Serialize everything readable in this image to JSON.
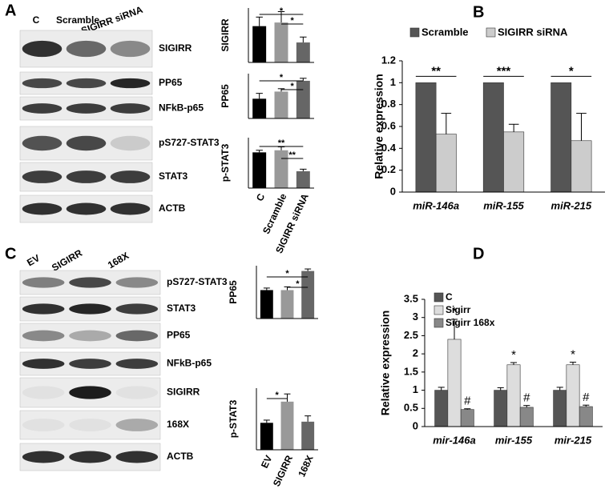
{
  "panel_labels": [
    "A",
    "B",
    "C",
    "D"
  ],
  "blots": [
    {
      "lanes": [
        "C",
        "Scramble",
        "SIGIRR siRNA"
      ],
      "rows": [
        "SIGIRR",
        "PP65",
        "NFkB-p65",
        "pS727-STAT3",
        "STAT3",
        "ACTB"
      ]
    },
    {
      "lanes": [
        "EV",
        "SIGIRR",
        "168X"
      ],
      "rows": [
        "pS727-STAT3",
        "STAT3",
        "PP65",
        "NFkB-p65",
        "SIGIRR",
        "168X",
        "ACTB"
      ]
    }
  ],
  "chart_data": [
    {
      "type": "bar",
      "y_label": "SIGIRR",
      "categories": [
        null,
        null,
        null
      ],
      "values": [
        1.0,
        1.1,
        0.55
      ],
      "errors": [
        0.25,
        0.3,
        0.15
      ],
      "colors": [
        "#000000",
        "#999999",
        "#666666"
      ],
      "ylim": [
        0,
        1.5
      ],
      "annotations": [
        "*",
        "*"
      ]
    },
    {
      "type": "bar",
      "y_label": "PP65",
      "categories": [
        null,
        null,
        null
      ],
      "values": [
        0.55,
        0.75,
        1.05
      ],
      "errors": [
        0.15,
        0.08,
        0.07
      ],
      "colors": [
        "#000000",
        "#999999",
        "#666666"
      ],
      "ylim": [
        0,
        1.25
      ],
      "annotations": [
        "*",
        "*"
      ]
    },
    {
      "type": "bar",
      "y_label": "p-STAT3",
      "categories": [
        "C",
        "Scramble",
        "SIGIRR siRNA"
      ],
      "values": [
        0.85,
        0.9,
        0.4
      ],
      "errors": [
        0.05,
        0.08,
        0.05
      ],
      "colors": [
        "#000000",
        "#999999",
        "#666666"
      ],
      "ylim": [
        0,
        1.2
      ],
      "annotations": [
        "**",
        "**"
      ]
    },
    {
      "type": "grouped_bar",
      "y_label": "Relative expression",
      "categories": [
        "miR-146a",
        "miR-155",
        "miR-215"
      ],
      "series": [
        {
          "name": "Scramble",
          "color": "#555555",
          "values": [
            1,
            1,
            1
          ],
          "errors": [
            0,
            0,
            0
          ]
        },
        {
          "name": "SIGIRR siRNA",
          "color": "#cccccc",
          "values": [
            0.53,
            0.55,
            0.47
          ],
          "errors": [
            0.19,
            0.07,
            0.25
          ]
        }
      ],
      "ylim": [
        0,
        1.2
      ],
      "yticks": [
        0,
        0.2,
        0.4,
        0.6,
        0.8,
        1,
        1.2
      ],
      "annotations": [
        "**",
        "***",
        "*"
      ]
    },
    {
      "type": "bar",
      "y_label": "PP65",
      "categories": [
        null,
        null,
        null
      ],
      "values": [
        0.7,
        0.7,
        1.17
      ],
      "errors": [
        0.05,
        0.08,
        0.05
      ],
      "colors": [
        "#000000",
        "#999999",
        "#666666"
      ],
      "ylim": [
        0,
        1.3
      ],
      "annotations": [
        "*",
        "*"
      ]
    },
    {
      "type": "bar",
      "y_label": "p-STAT3",
      "categories": [
        "EV",
        "SIGIRR",
        "168X"
      ],
      "values": [
        0.7,
        1.25,
        0.73
      ],
      "errors": [
        0.07,
        0.2,
        0.15
      ],
      "colors": [
        "#000000",
        "#999999",
        "#666666"
      ],
      "ylim": [
        0,
        1.6
      ],
      "annotations": [
        "*"
      ]
    },
    {
      "type": "grouped_bar",
      "y_label": "Relative expression",
      "categories": [
        "mir-146a",
        "mir-155",
        "mir-215"
      ],
      "series": [
        {
          "name": "C",
          "color": "#555555",
          "values": [
            1,
            1,
            1
          ],
          "errors": [
            0.08,
            0.07,
            0.08
          ]
        },
        {
          "name": "Sigirr",
          "color": "#dddddd",
          "values": [
            2.4,
            1.7,
            1.7
          ],
          "errors": [
            0.55,
            0.06,
            0.07
          ],
          "markers": [
            "*",
            "*",
            "*"
          ]
        },
        {
          "name": "Sigirr 168x",
          "color": "#888888",
          "values": [
            0.47,
            0.53,
            0.55
          ],
          "errors": [
            0.02,
            0.05,
            0.04
          ],
          "markers": [
            "#",
            "#",
            "#"
          ]
        }
      ],
      "ylim": [
        0,
        3.5
      ],
      "yticks": [
        0,
        0.5,
        1,
        1.5,
        2,
        2.5,
        3,
        3.5
      ]
    }
  ]
}
